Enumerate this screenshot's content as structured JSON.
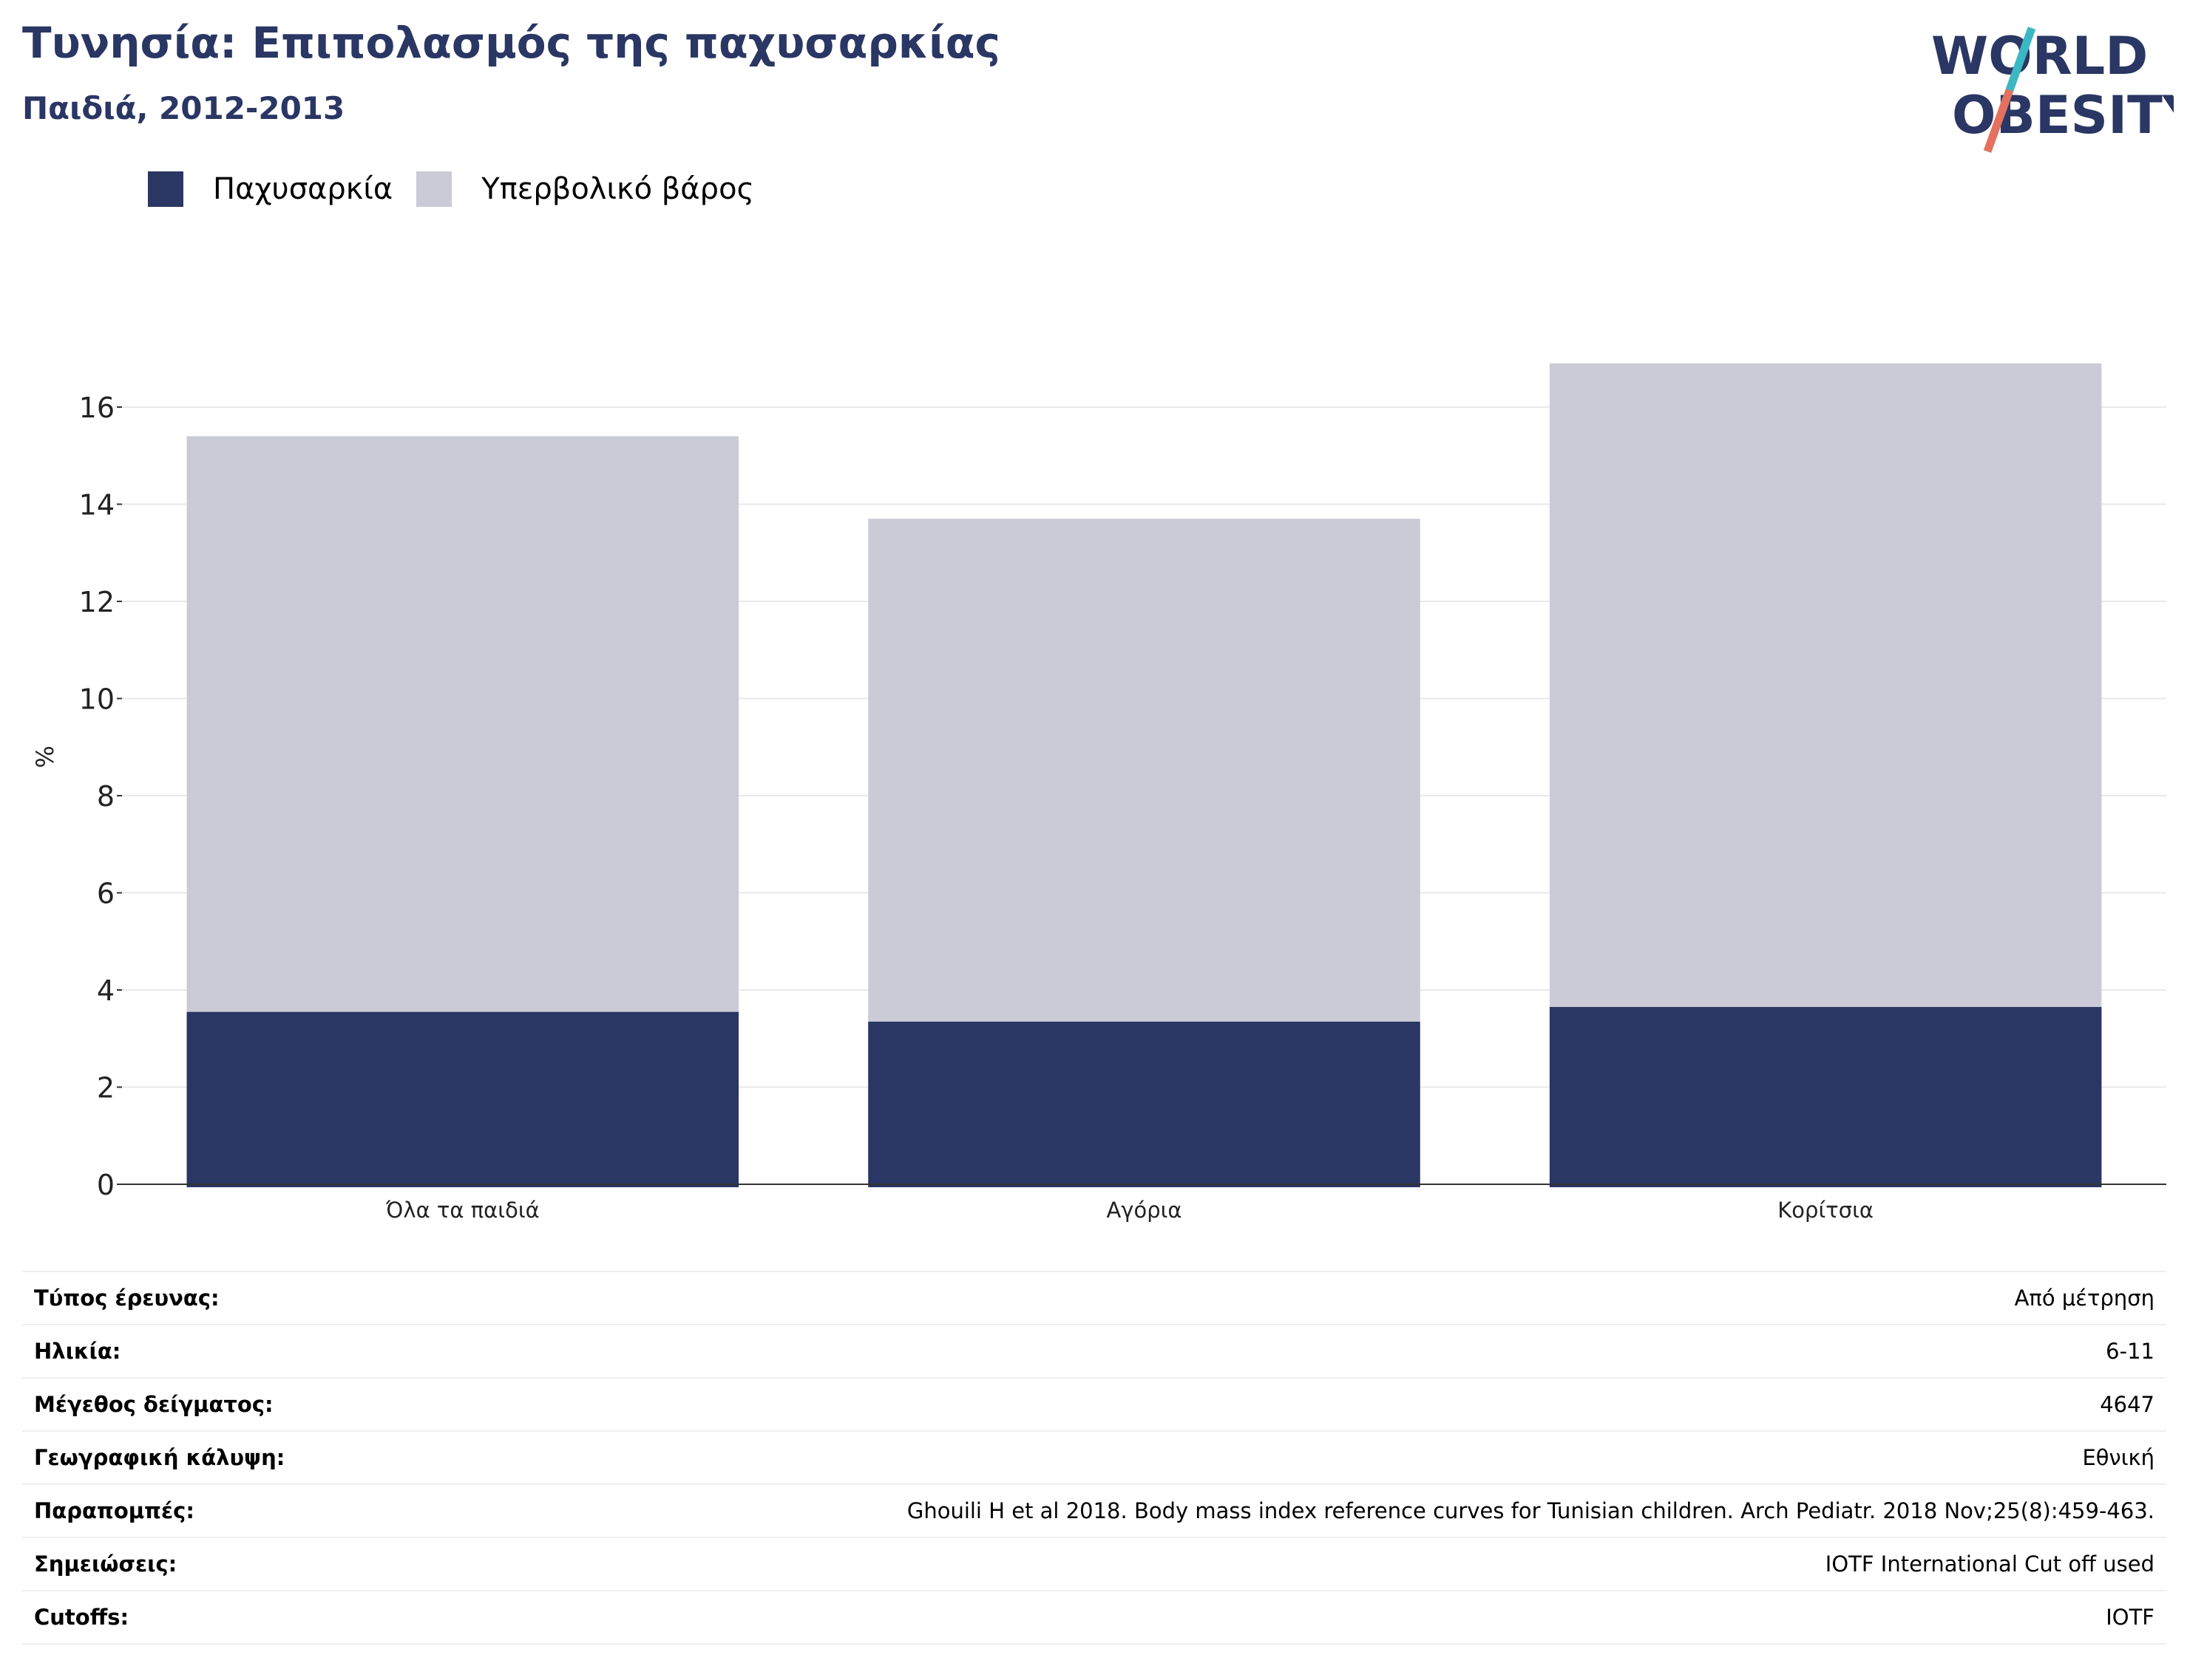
{
  "header": {
    "title": "Τυνησία: Επιπολασμός της παχυσαρκίας",
    "subtitle": "Παιδιά, 2012-2013"
  },
  "logo": {
    "line1": "WORLD",
    "line2": "OBESITY",
    "text_color": "#2a3663",
    "slash_top_color": "#3bb8c3",
    "slash_bottom_color": "#e4705f"
  },
  "colors": {
    "obesity": "#2a3663",
    "overweight": "#cacbd6",
    "grid": "#e9e9e9",
    "axis": "#333333"
  },
  "chart_data": {
    "type": "bar",
    "stacked": true,
    "categories": [
      "Όλα τα παιδιά",
      "Αγόρια",
      "Κορίτσια"
    ],
    "series": [
      {
        "name": "Παχυσαρκία",
        "values": [
          3.55,
          3.35,
          3.65
        ],
        "color": "#2a3663"
      },
      {
        "name": "Υπερβολικό βάρος",
        "values": [
          11.85,
          10.35,
          13.25
        ],
        "color": "#cacbd6"
      }
    ],
    "ylabel": "%",
    "ylim": [
      0,
      17
    ],
    "yticks": [
      0,
      2,
      4,
      6,
      8,
      10,
      12,
      14,
      16
    ],
    "grid": true,
    "legend_position": "top-left"
  },
  "info": [
    {
      "label": "Τύπος έρευνας:",
      "value": "Από μέτρηση"
    },
    {
      "label": "Ηλικία:",
      "value": "6-11"
    },
    {
      "label": "Μέγεθος δείγματος:",
      "value": "4647"
    },
    {
      "label": "Γεωγραφική κάλυψη:",
      "value": "Εθνική"
    },
    {
      "label": "Παραπομπές:",
      "value": "Ghouili H et al 2018. Body mass index reference curves for Tunisian children. Arch Pediatr. 2018 Nov;25(8):459-463."
    },
    {
      "label": "Σημειώσεις:",
      "value": "IOTF International Cut off used"
    },
    {
      "label": "Cutoffs:",
      "value": "IOTF"
    }
  ]
}
